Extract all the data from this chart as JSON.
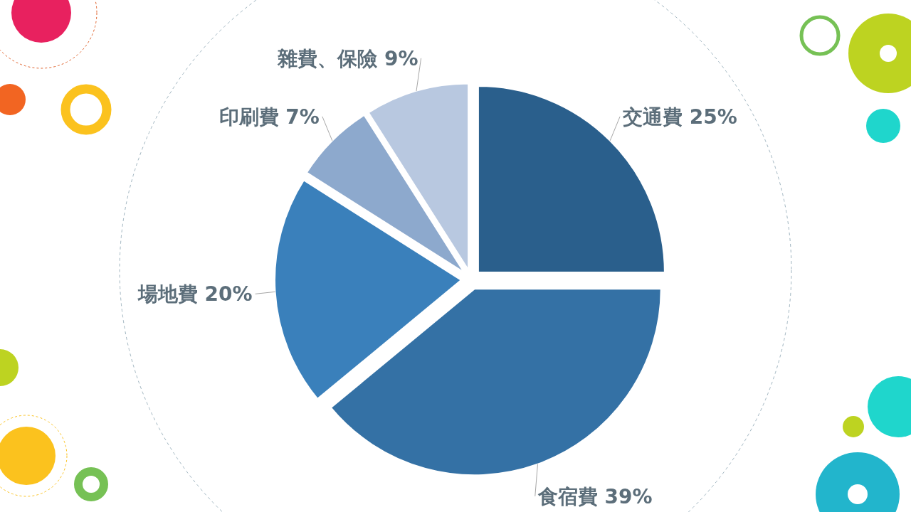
{
  "chart_data": {
    "type": "pie",
    "categories": [
      "交通費",
      "食宿費",
      "場地費",
      "印刷費",
      "雜費、保險"
    ],
    "values": [
      25,
      39,
      20,
      7,
      9
    ],
    "colors": [
      "#2a5f8c",
      "#3471a5",
      "#3a80bb",
      "#8da9cd",
      "#b8c8e0"
    ],
    "value_labels": [
      "25%",
      "39%",
      "20%",
      "7%",
      "9%"
    ]
  }
}
